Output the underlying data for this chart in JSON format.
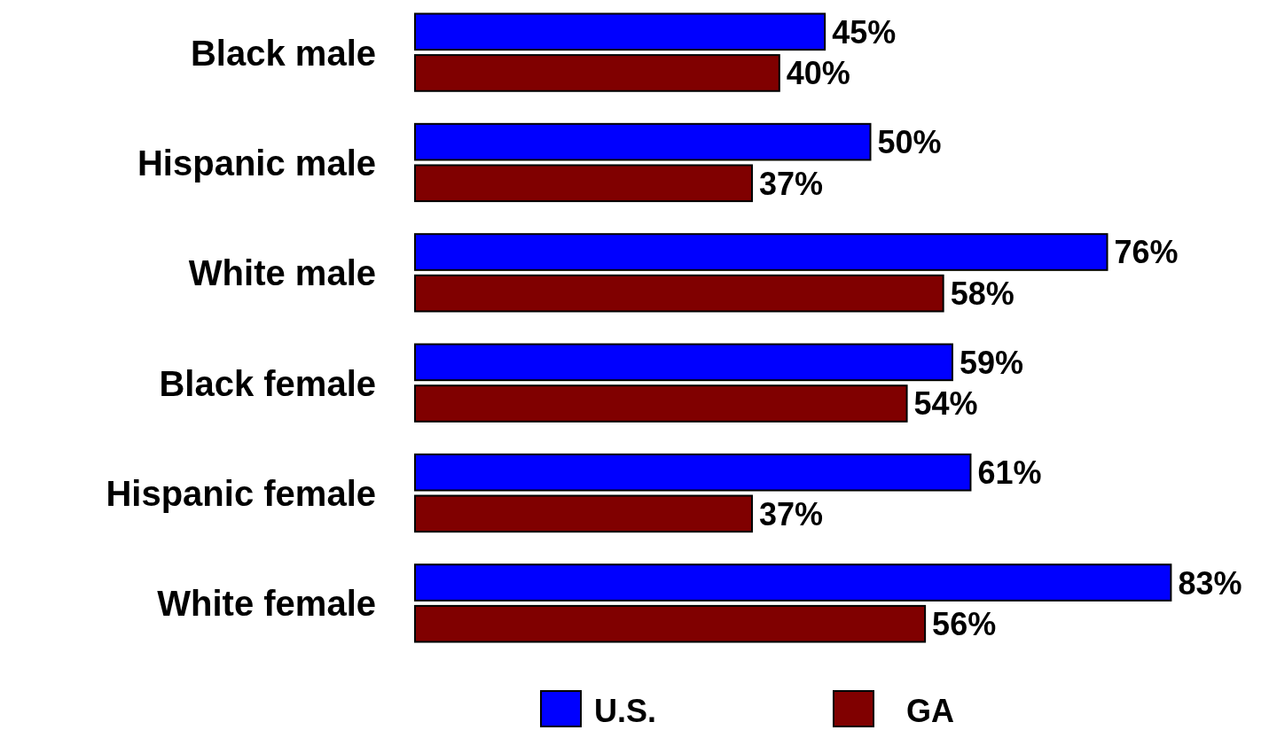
{
  "chart_data": {
    "type": "bar",
    "orientation": "horizontal",
    "categories": [
      "Black male",
      "Hispanic male",
      "White male",
      "Black female",
      "Hispanic female",
      "White female"
    ],
    "series": [
      {
        "name": "U.S.",
        "color": "#0000ff",
        "values": [
          45,
          50,
          76,
          59,
          61,
          83
        ],
        "value_labels": [
          "45%",
          "50%",
          "76%",
          "59%",
          "61%",
          "83%"
        ]
      },
      {
        "name": "GA",
        "color": "#800000",
        "values": [
          40,
          37,
          58,
          54,
          37,
          56
        ],
        "value_labels": [
          "40%",
          "37%",
          "58%",
          "54%",
          "37%",
          "56%"
        ]
      }
    ],
    "legend": "bottom"
  }
}
